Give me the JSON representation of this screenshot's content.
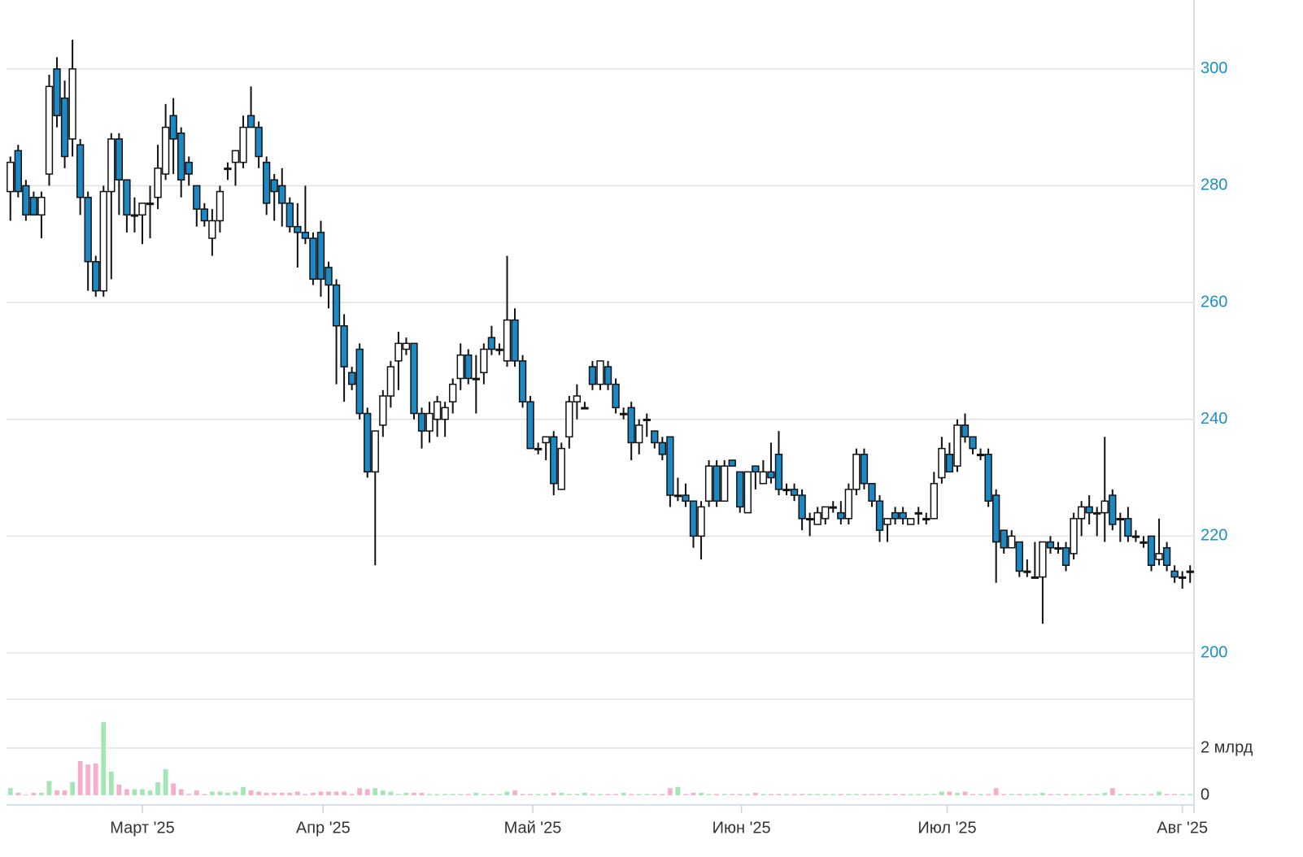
{
  "chart_data": {
    "type": "candlestick",
    "up_color": "#ffffff",
    "down_color": "#1b8ac4",
    "wick_color": "#111111",
    "volume_up_color": "#a3e6b4",
    "volume_down_color": "#f7aecb",
    "ylim": [
      200,
      311.8
    ],
    "yticks": [
      200,
      220,
      240,
      260,
      280,
      300
    ],
    "grid": true,
    "volume_ylim": [
      0,
      4.07
    ],
    "volume_yticks": [
      0,
      {
        "value": 2,
        "label": "2 млрд"
      }
    ],
    "xticks": [
      {
        "value": 17,
        "label": "Март '25"
      },
      {
        "value": 40.3,
        "label": "Апр '25"
      },
      {
        "value": 67.3,
        "label": "Май '25"
      },
      {
        "value": 94.2,
        "label": "Июн '25"
      },
      {
        "value": 120.7,
        "label": "Июл '25"
      },
      {
        "value": 151,
        "label": "Авг '25"
      }
    ],
    "ohlc": [
      [
        279,
        285,
        274,
        284
      ],
      [
        286,
        287,
        278,
        279
      ],
      [
        280,
        281,
        274,
        275
      ],
      [
        278,
        279,
        275,
        275
      ],
      [
        275,
        279,
        271,
        278
      ],
      [
        282,
        299,
        280,
        297
      ],
      [
        300,
        302,
        290,
        292
      ],
      [
        295,
        298,
        283,
        285
      ],
      [
        288,
        305,
        285,
        300
      ],
      [
        287,
        288,
        275,
        278
      ],
      [
        278,
        279,
        262,
        267
      ],
      [
        267,
        268,
        261,
        262
      ],
      [
        262,
        280,
        261,
        279
      ],
      [
        279,
        289,
        264,
        288
      ],
      [
        288,
        289,
        275,
        281
      ],
      [
        281,
        281,
        272,
        275
      ],
      [
        275,
        278,
        272,
        275
      ],
      [
        275,
        277,
        270,
        277
      ],
      [
        277,
        280,
        271,
        277
      ],
      [
        278,
        287,
        276,
        283
      ],
      [
        282,
        294,
        281,
        290
      ],
      [
        292,
        295,
        282,
        288
      ],
      [
        289,
        290,
        278,
        281
      ],
      [
        284,
        285,
        280,
        282
      ],
      [
        280,
        280,
        273,
        276
      ],
      [
        276,
        277,
        273,
        274
      ],
      [
        271,
        276,
        268,
        274
      ],
      [
        274,
        280,
        272,
        279
      ],
      [
        283,
        284,
        281,
        283
      ],
      [
        284,
        286,
        280,
        286
      ],
      [
        284,
        292,
        283,
        290
      ],
      [
        292,
        297,
        290,
        290
      ],
      [
        290,
        291,
        283,
        285
      ],
      [
        284,
        285,
        275,
        277
      ],
      [
        281,
        282,
        274,
        279
      ],
      [
        280,
        283,
        273,
        277
      ],
      [
        277,
        278,
        272,
        273
      ],
      [
        273,
        277,
        266,
        272
      ],
      [
        272,
        280,
        270,
        271
      ],
      [
        271,
        272,
        263,
        264
      ],
      [
        272,
        274,
        261,
        264
      ],
      [
        266,
        267,
        259,
        263
      ],
      [
        263,
        264,
        246,
        256
      ],
      [
        256,
        258,
        243,
        249
      ],
      [
        248,
        249,
        245,
        246
      ],
      [
        252,
        253,
        240,
        241
      ],
      [
        241,
        242,
        230,
        231
      ],
      [
        231,
        238,
        215,
        238
      ],
      [
        239,
        245,
        237,
        244
      ],
      [
        244,
        250,
        242,
        249
      ],
      [
        250,
        255,
        245,
        253
      ],
      [
        252,
        254,
        251,
        253
      ],
      [
        253,
        253,
        240,
        241
      ],
      [
        241,
        242,
        235,
        238
      ],
      [
        238,
        243,
        236,
        241
      ],
      [
        240,
        244,
        237,
        243
      ],
      [
        240,
        243,
        237,
        242
      ],
      [
        243,
        247,
        241,
        246
      ],
      [
        247,
        253,
        245,
        251
      ],
      [
        251,
        252,
        246,
        247
      ],
      [
        247,
        251,
        241,
        247
      ],
      [
        248,
        253,
        246,
        252
      ],
      [
        254,
        256,
        251,
        252
      ],
      [
        252,
        253,
        251,
        252
      ],
      [
        250,
        268,
        249,
        257
      ],
      [
        257,
        259,
        249,
        250
      ],
      [
        250,
        251,
        242,
        243
      ],
      [
        243,
        244,
        235,
        235
      ],
      [
        235,
        236,
        234,
        235
      ],
      [
        236,
        237,
        233,
        237
      ],
      [
        237,
        238,
        227,
        229
      ],
      [
        228,
        236,
        228,
        235
      ],
      [
        237,
        244,
        235,
        243
      ],
      [
        243,
        246,
        240,
        244
      ],
      [
        242,
        243,
        242,
        242
      ],
      [
        249,
        250,
        245,
        246
      ],
      [
        246,
        250,
        245,
        250
      ],
      [
        249,
        250,
        245,
        246
      ],
      [
        246,
        247,
        241,
        242
      ],
      [
        241,
        242,
        240,
        241
      ],
      [
        242,
        243,
        233,
        236
      ],
      [
        236,
        240,
        234,
        239
      ],
      [
        240,
        241,
        237,
        240
      ],
      [
        238,
        238,
        235,
        236
      ],
      [
        236,
        237,
        233,
        234
      ],
      [
        237,
        237,
        225,
        227
      ],
      [
        227,
        230,
        226,
        227
      ],
      [
        227,
        229,
        225,
        226
      ],
      [
        226,
        226,
        218,
        220
      ],
      [
        220,
        226,
        216,
        225
      ],
      [
        226,
        233,
        225,
        232
      ],
      [
        232,
        233,
        225,
        226
      ],
      [
        226,
        233,
        226,
        232
      ],
      [
        233,
        233,
        232,
        232
      ],
      [
        231,
        231,
        224,
        225
      ],
      [
        224,
        231,
        224,
        231
      ],
      [
        232,
        232,
        228,
        231
      ],
      [
        229,
        233,
        229,
        231
      ],
      [
        231,
        236,
        229,
        230
      ],
      [
        234,
        238,
        227,
        228
      ],
      [
        228,
        229,
        227,
        228
      ],
      [
        228,
        229,
        226,
        227
      ],
      [
        227,
        228,
        221,
        223
      ],
      [
        223,
        224,
        220,
        223
      ],
      [
        222,
        225,
        222,
        224
      ],
      [
        223,
        225,
        222,
        225
      ],
      [
        225,
        226,
        224,
        225
      ],
      [
        224,
        226,
        222,
        223
      ],
      [
        223,
        229,
        222,
        228
      ],
      [
        228,
        235,
        227,
        234
      ],
      [
        234,
        235,
        228,
        229
      ],
      [
        229,
        229,
        225,
        226
      ],
      [
        226,
        227,
        219,
        221
      ],
      [
        222,
        223,
        219,
        223
      ],
      [
        224,
        225,
        222,
        223
      ],
      [
        224,
        225,
        222,
        223
      ],
      [
        222,
        223,
        222,
        223
      ],
      [
        224,
        225,
        222,
        224
      ],
      [
        223,
        224,
        222,
        223
      ],
      [
        223,
        231,
        223,
        229
      ],
      [
        230,
        237,
        229,
        235
      ],
      [
        234,
        236,
        231,
        231
      ],
      [
        232,
        240,
        231,
        239
      ],
      [
        239,
        241,
        236,
        237
      ],
      [
        237,
        237,
        234,
        235
      ],
      [
        234,
        235,
        233,
        234
      ],
      [
        234,
        235,
        225,
        226
      ],
      [
        227,
        228,
        212,
        219
      ],
      [
        221,
        221,
        217,
        218
      ],
      [
        218,
        221,
        218,
        220
      ],
      [
        219,
        219,
        213,
        214
      ],
      [
        214,
        216,
        213,
        214
      ],
      [
        213,
        219,
        213,
        213
      ],
      [
        213,
        219,
        205,
        219
      ],
      [
        219,
        220,
        217,
        218
      ],
      [
        218,
        219,
        217,
        218
      ],
      [
        218,
        219,
        214,
        215
      ],
      [
        217,
        224,
        216,
        223
      ],
      [
        223,
        226,
        220,
        225
      ],
      [
        225,
        227,
        222,
        224
      ],
      [
        224,
        225,
        220,
        224
      ],
      [
        224,
        237,
        219,
        226
      ],
      [
        227,
        228,
        221,
        222
      ],
      [
        223,
        224,
        219,
        223
      ],
      [
        223,
        225,
        219,
        220
      ],
      [
        220,
        221,
        219,
        220
      ],
      [
        219,
        220,
        218,
        219
      ],
      [
        220,
        220,
        214,
        215
      ],
      [
        216,
        223,
        215,
        217
      ],
      [
        218,
        219,
        214,
        215
      ],
      [
        214,
        215,
        212,
        213
      ],
      [
        213,
        214,
        211,
        213
      ],
      [
        214,
        215,
        212,
        214
      ]
    ],
    "volume": [
      0.3,
      0.1,
      0.03,
      0.1,
      0.1,
      0.6,
      0.2,
      0.2,
      0.55,
      1.45,
      1.3,
      1.35,
      3.1,
      1.0,
      0.45,
      0.25,
      0.25,
      0.25,
      0.2,
      0.55,
      1.1,
      0.5,
      0.25,
      0.05,
      0.2,
      0.05,
      0.15,
      0.15,
      0.1,
      0.15,
      0.35,
      0.2,
      0.15,
      0.1,
      0.1,
      0.1,
      0.1,
      0.15,
      0.05,
      0.1,
      0.15,
      0.15,
      0.15,
      0.15,
      0.05,
      0.3,
      0.25,
      0.3,
      0.2,
      0.15,
      0.05,
      0.1,
      0.1,
      0.1,
      0.05,
      0.05,
      0.05,
      0.05,
      0.05,
      0.05,
      0.1,
      0.05,
      0.05,
      0.05,
      0.15,
      0.2,
      0.05,
      0.05,
      0.05,
      0.05,
      0.1,
      0.1,
      0.05,
      0.05,
      0.1,
      0.05,
      0.05,
      0.05,
      0.05,
      0.1,
      0.05,
      0.05,
      0.05,
      0.05,
      0.05,
      0.3,
      0.35,
      0.05,
      0.1,
      0.1,
      0.05,
      0.05,
      0.05,
      0.05,
      0.05,
      0.05,
      0.1,
      0.05,
      0.05,
      0.05,
      0.05,
      0.05,
      0.05,
      0.05,
      0.05,
      0.05,
      0.05,
      0.05,
      0.05,
      0.05,
      0.05,
      0.05,
      0.05,
      0.05,
      0.05,
      0.05,
      0.05,
      0.05,
      0.05,
      0.05,
      0.15,
      0.15,
      0.1,
      0.15,
      0.05,
      0.05,
      0.05,
      0.3,
      0.05,
      0.05,
      0.05,
      0.05,
      0.05,
      0.1,
      0.05,
      0.05,
      0.05,
      0.05,
      0.05,
      0.05,
      0.05,
      0.1,
      0.3,
      0.05,
      0.05,
      0.05,
      0.05,
      0.05,
      0.15,
      0.05,
      0.05,
      0.05,
      0.05
    ]
  }
}
